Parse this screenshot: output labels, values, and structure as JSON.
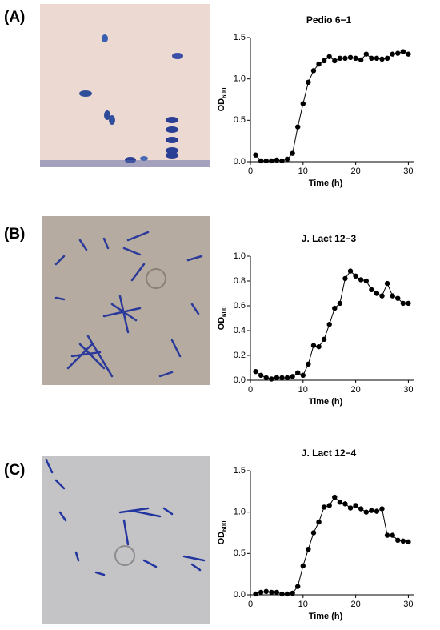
{
  "chart_data": [
    {
      "type": "line",
      "panel": "(A)",
      "title": "Pedio 6−1",
      "xlabel": "Time (h)",
      "ylabel": "OD",
      "ylabel_subscript": "600",
      "x": [
        1,
        2,
        3,
        4,
        5,
        6,
        7,
        8,
        9,
        10,
        11,
        12,
        13,
        14,
        15,
        16,
        17,
        18,
        19,
        20,
        21,
        22,
        23,
        24,
        25,
        26,
        27,
        28,
        29,
        30
      ],
      "series": [
        {
          "color": "#000000",
          "values": [
            0.08,
            0.01,
            0.01,
            0.01,
            0.02,
            0.01,
            0.03,
            0.1,
            0.42,
            0.7,
            0.96,
            1.1,
            1.18,
            1.22,
            1.27,
            1.22,
            1.25,
            1.25,
            1.26,
            1.25,
            1.23,
            1.3,
            1.25,
            1.25,
            1.24,
            1.25,
            1.3,
            1.31,
            1.33,
            1.3
          ]
        }
      ],
      "xlim": [
        0,
        31
      ],
      "xticks": [
        0,
        10,
        20,
        30
      ],
      "ylim": [
        0,
        1.5
      ],
      "yticks": [
        {
          "value": 0,
          "label": "0.0"
        },
        0.5,
        {
          "value": 1,
          "label": "1.0"
        },
        1.5
      ]
    },
    {
      "type": "line",
      "panel": "(B)",
      "title": "J. Lact 12−3",
      "xlabel": "Time (h)",
      "ylabel": "OD",
      "ylabel_subscript": "600",
      "x": [
        1,
        2,
        3,
        4,
        5,
        6,
        7,
        8,
        9,
        10,
        11,
        12,
        13,
        14,
        15,
        16,
        17,
        18,
        19,
        20,
        21,
        22,
        23,
        24,
        25,
        26,
        27,
        28,
        29,
        30
      ],
      "series": [
        {
          "color": "#000000",
          "values": [
            0.07,
            0.04,
            0.02,
            0.01,
            0.02,
            0.02,
            0.02,
            0.03,
            0.06,
            0.04,
            0.13,
            0.28,
            0.27,
            0.33,
            0.45,
            0.58,
            0.62,
            0.82,
            0.88,
            0.84,
            0.81,
            0.8,
            0.73,
            0.7,
            0.68,
            0.78,
            0.68,
            0.66,
            0.62,
            0.62
          ]
        }
      ],
      "xlim": [
        0,
        31
      ],
      "xticks": [
        0,
        10,
        20,
        30
      ],
      "ylim": [
        0,
        1
      ],
      "yticks": [
        {
          "value": 0,
          "label": "0.0"
        },
        0.2,
        0.4,
        0.6,
        0.8,
        {
          "value": 1,
          "label": "1.0"
        }
      ]
    },
    {
      "type": "line",
      "panel": "(C)",
      "title": "J. Lact 12−4",
      "xlabel": "Time (h)",
      "ylabel": "OD",
      "ylabel_subscript": "600",
      "x": [
        1,
        2,
        3,
        4,
        5,
        6,
        7,
        8,
        9,
        10,
        11,
        12,
        13,
        14,
        15,
        16,
        17,
        18,
        19,
        20,
        21,
        22,
        23,
        24,
        25,
        26,
        27,
        28,
        29,
        30
      ],
      "series": [
        {
          "color": "#000000",
          "values": [
            0.01,
            0.03,
            0.04,
            0.03,
            0.03,
            0.01,
            0.01,
            0.02,
            0.1,
            0.35,
            0.55,
            0.75,
            0.88,
            1.06,
            1.08,
            1.18,
            1.12,
            1.1,
            1.05,
            1.08,
            1.04,
            1.0,
            1.02,
            1.01,
            1.04,
            0.72,
            0.72,
            0.66,
            0.65,
            0.64
          ]
        }
      ],
      "xlim": [
        0,
        31
      ],
      "xticks": [
        0,
        10,
        20,
        30
      ],
      "ylim": [
        0,
        1.5
      ],
      "yticks": [
        {
          "value": 0,
          "label": "0.0"
        },
        0.5,
        {
          "value": 1,
          "label": "1.0"
        },
        1.5
      ]
    }
  ]
}
